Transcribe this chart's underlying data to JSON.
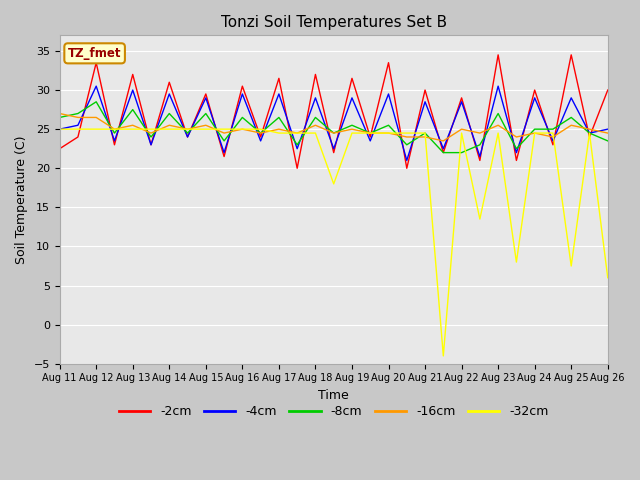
{
  "title": "Tonzi Soil Temperatures Set B",
  "xlabel": "Time",
  "ylabel": "Soil Temperature (C)",
  "ylim": [
    -5,
    37
  ],
  "legend_label": "TZ_fmet",
  "series_labels": [
    "-2cm",
    "-4cm",
    "-8cm",
    "-16cm",
    "-32cm"
  ],
  "series_colors": [
    "#ff0000",
    "#0000ff",
    "#00cc00",
    "#ff9900",
    "#ffff00"
  ],
  "xtick_labels": [
    "Aug 11",
    "Aug 12",
    "Aug 13",
    "Aug 14",
    "Aug 15",
    "Aug 16",
    "Aug 17",
    "Aug 18",
    "Aug 19",
    "Aug 20",
    "Aug 21",
    "Aug 22",
    "Aug 23",
    "Aug 24",
    "Aug 25",
    "Aug 26"
  ],
  "ytick_values": [
    -5,
    0,
    5,
    10,
    15,
    20,
    25,
    30,
    35
  ],
  "data": {
    "cm2": [
      22.5,
      24.0,
      33.5,
      23.0,
      32.0,
      23.0,
      31.0,
      24.0,
      29.5,
      21.5,
      30.5,
      24.0,
      31.5,
      20.0,
      32.0,
      22.0,
      31.5,
      24.0,
      33.5,
      20.0,
      30.0,
      22.0,
      29.0,
      21.0,
      34.5,
      21.0,
      30.0,
      23.0,
      34.5,
      24.0,
      30.0
    ],
    "cm4": [
      25.0,
      25.5,
      30.5,
      23.5,
      30.0,
      23.0,
      29.5,
      24.0,
      29.0,
      22.0,
      29.5,
      23.5,
      29.5,
      22.5,
      29.0,
      22.5,
      29.0,
      23.5,
      29.5,
      21.0,
      28.5,
      22.5,
      28.5,
      21.5,
      30.5,
      22.0,
      29.0,
      23.5,
      29.0,
      24.5,
      25.0
    ],
    "cm8": [
      26.5,
      27.0,
      28.5,
      24.5,
      27.5,
      24.0,
      27.0,
      24.5,
      27.0,
      23.5,
      26.5,
      24.5,
      26.5,
      23.0,
      26.5,
      24.5,
      25.5,
      24.5,
      25.5,
      23.0,
      24.5,
      22.0,
      22.0,
      23.0,
      27.0,
      22.5,
      25.0,
      25.0,
      26.5,
      24.5,
      23.5
    ],
    "cm16": [
      27.0,
      26.5,
      26.5,
      25.0,
      25.5,
      24.5,
      25.5,
      25.0,
      25.5,
      24.5,
      25.0,
      24.5,
      25.0,
      24.5,
      25.5,
      24.5,
      25.0,
      24.5,
      24.5,
      24.0,
      24.0,
      23.5,
      25.0,
      24.5,
      25.5,
      24.0,
      24.5,
      24.0,
      25.5,
      25.0,
      24.5
    ],
    "cm32": [
      25.0,
      25.0,
      25.0,
      25.0,
      25.0,
      25.0,
      25.0,
      25.0,
      25.0,
      25.0,
      25.0,
      25.0,
      24.5,
      24.5,
      24.5,
      18.0,
      24.5,
      24.5,
      24.5,
      24.5,
      24.5,
      -4.0,
      24.5,
      13.5,
      24.5,
      8.0,
      24.5,
      24.5,
      7.5,
      24.5,
      6.0
    ]
  }
}
